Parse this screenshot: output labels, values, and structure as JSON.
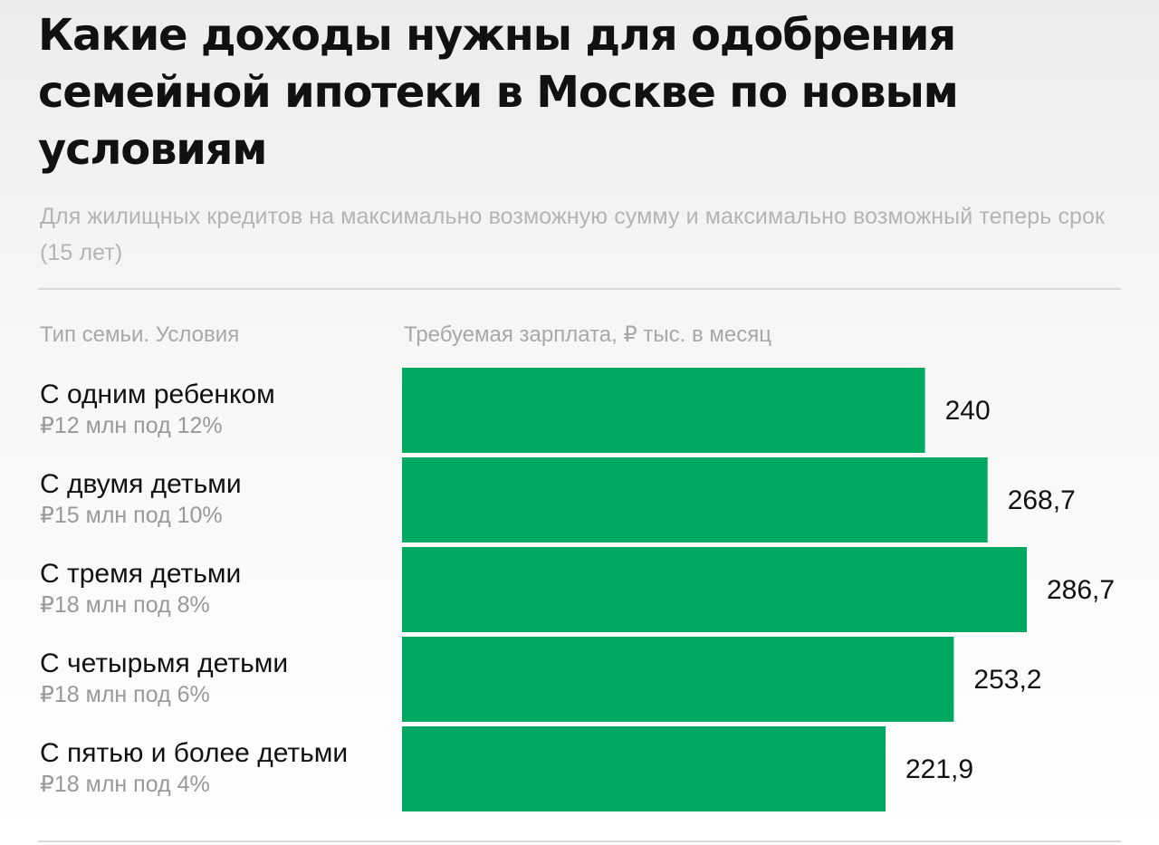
{
  "title": "Какие доходы нужны для одобрения семейной ипотеки в Москве по новым условиям",
  "subtitle": "Для жилищных кредитов на максимально возможную сумму и максимально возможный теперь срок (15 лет)",
  "columns": {
    "family": "Тип семьи. Условия",
    "salary": "Требуемая зарплата, ₽ тыс. в месяц"
  },
  "rows": [
    {
      "name": "С одним ребенком",
      "conditions": "₽12 млн под 12%"
    },
    {
      "name": "С двумя детьми",
      "conditions": "₽15 млн под 10%"
    },
    {
      "name": "С тремя детьми",
      "conditions": "₽18 млн под 8%"
    },
    {
      "name": "С четырьмя детьми",
      "conditions": "₽18 млн под 6%"
    },
    {
      "name": "С пятью и более детьми",
      "conditions": "₽18 млн под 4%"
    }
  ],
  "colors": {
    "bar": "#00a862"
  },
  "chart_data": {
    "type": "bar",
    "orientation": "horizontal",
    "categories": [
      "С одним ребенком",
      "С двумя детьми",
      "С тремя детьми",
      "С четырьмя детьми",
      "С пятью и более детьми"
    ],
    "values": [
      240,
      268.7,
      286.7,
      253.2,
      221.9
    ],
    "value_labels": [
      "240",
      "268,7",
      "286,7",
      "253,2",
      "221,9"
    ],
    "title": "Какие доходы нужны для одобрения семейной ипотеки в Москве по новым условиям",
    "xlabel": "Требуемая зарплата, ₽ тыс. в месяц",
    "ylabel": "Тип семьи. Условия",
    "xlim": [
      0,
      286.7
    ],
    "grid": false,
    "legend": "none"
  }
}
